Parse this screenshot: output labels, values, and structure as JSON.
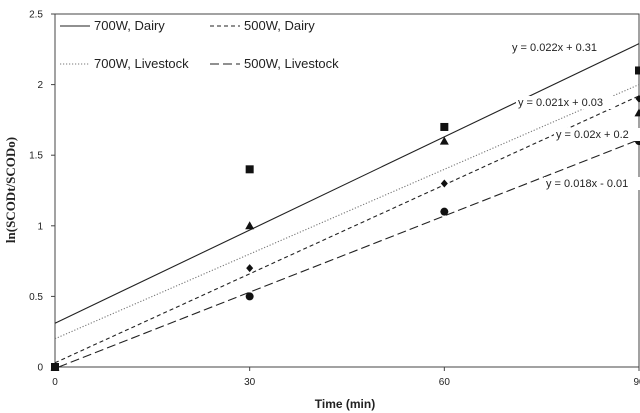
{
  "chart_data": {
    "type": "scatter",
    "xlabel": "Time (min)",
    "ylabel": "ln(SCODt/SCODo)",
    "xlim": [
      0,
      90
    ],
    "ylim": [
      0,
      2.5
    ],
    "x_ticks": [
      "0",
      "30",
      "60",
      "90"
    ],
    "y_ticks": [
      "0",
      "0.5",
      "1",
      "1.5",
      "2",
      "2.5"
    ],
    "grid": false,
    "legend_position": "top-left",
    "series": [
      {
        "name": "700W, Dairy",
        "marker": "square",
        "line": "solid",
        "color": "#333333",
        "x": [
          0,
          30,
          60,
          90
        ],
        "y": [
          0,
          1.4,
          1.7,
          2.1
        ],
        "trend": {
          "slope": 0.022,
          "intercept": 0.31,
          "label": "y = 0.022x + 0.31"
        }
      },
      {
        "name": "500W, Dairy",
        "marker": "diamond",
        "line": "short-dash",
        "color": "#333333",
        "x": [
          0,
          30,
          60,
          90
        ],
        "y": [
          0,
          0.7,
          1.3,
          1.9
        ],
        "trend": {
          "slope": 0.021,
          "intercept": 0.03,
          "label": "y = 0.021x + 0.03"
        }
      },
      {
        "name": "700W, Livestock",
        "marker": "triangle",
        "line": "dotted",
        "color": "#555555",
        "x": [
          0,
          30,
          60,
          90
        ],
        "y": [
          0,
          1.0,
          1.6,
          1.8
        ],
        "trend": {
          "slope": 0.02,
          "intercept": 0.2,
          "label": "y = 0.02x + 0.2"
        }
      },
      {
        "name": "500W, Livestock",
        "marker": "circle",
        "line": "long-dash",
        "color": "#333333",
        "x": [
          0,
          30,
          60,
          90
        ],
        "y": [
          0,
          0.5,
          1.1,
          1.6
        ],
        "trend": {
          "slope": 0.018,
          "intercept": -0.01,
          "label": "y = 0.018x - 0.01"
        }
      }
    ]
  }
}
